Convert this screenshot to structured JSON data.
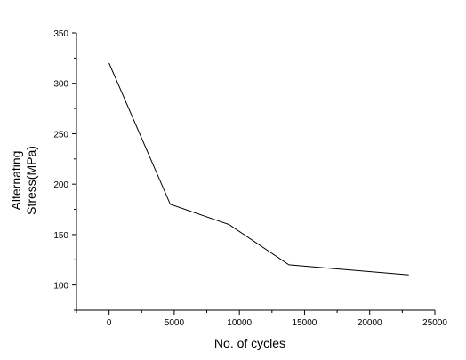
{
  "chart_data": {
    "type": "line",
    "title": "",
    "xlabel": "No. of cycles",
    "ylabel_lines": [
      "Alternating",
      "Stress(MPa)"
    ],
    "xlim": [
      -2500,
      25000
    ],
    "ylim": [
      75,
      350
    ],
    "x_ticks": [
      0,
      5000,
      10000,
      15000,
      20000,
      25000
    ],
    "y_ticks": [
      100,
      150,
      200,
      250,
      300,
      350
    ],
    "x_tick_labels": [
      "0",
      "5000",
      "10000",
      "15000",
      "20000",
      "25000"
    ],
    "y_tick_labels": [
      "100",
      "150",
      "200",
      "250",
      "300",
      "350"
    ],
    "grid": false,
    "legend": "none",
    "line_color": "#000000",
    "series": [
      {
        "x": [
          0,
          4700,
          9200,
          13800,
          23000
        ],
        "y": [
          320,
          180,
          160,
          120,
          110
        ]
      }
    ]
  }
}
